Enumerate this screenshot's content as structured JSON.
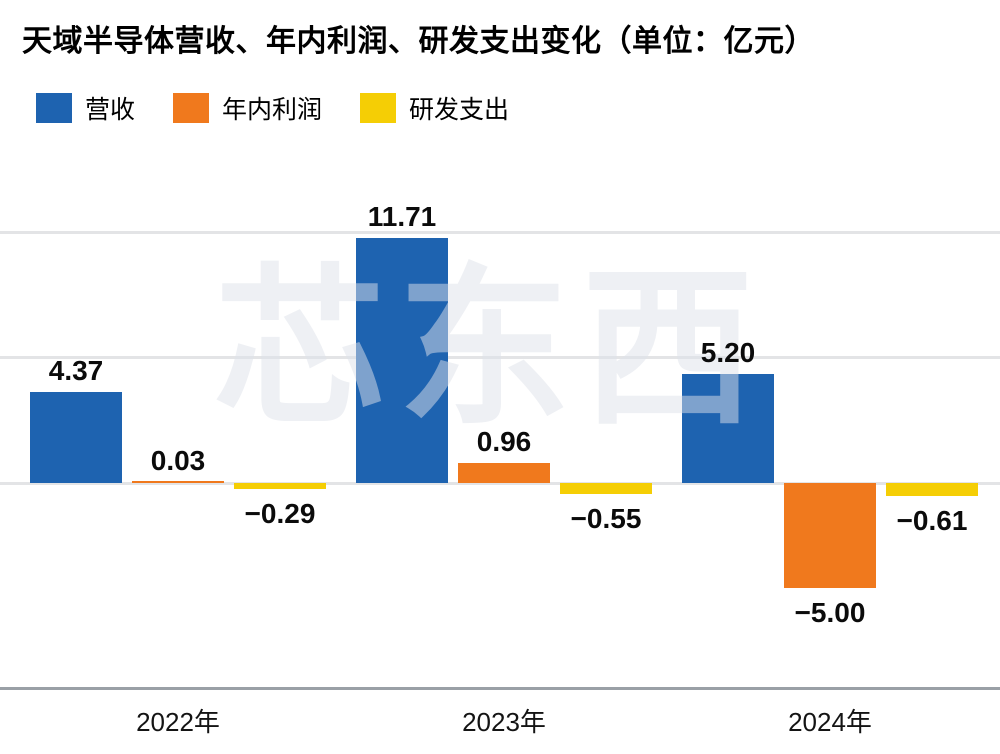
{
  "title": "天域半导体营收、年内利润、研发支出变化（单位：亿元）",
  "watermark": "芯东西",
  "chart_data": {
    "type": "bar",
    "title": "天域半导体营收、年内利润、研发支出变化（单位：亿元）",
    "unit": "亿元",
    "categories": [
      "2022年",
      "2023年",
      "2024年"
    ],
    "series": [
      {
        "name": "营收",
        "color": "#1e63b0",
        "values": [
          4.37,
          11.71,
          5.2
        ],
        "labels": [
          "4.37",
          "11.71",
          "5.20"
        ]
      },
      {
        "name": "年内利润",
        "color": "#f0791d",
        "values": [
          0.03,
          0.96,
          -5.0
        ],
        "labels": [
          "0.03",
          "0.96",
          "−5.00"
        ]
      },
      {
        "name": "研发支出",
        "color": "#f5ce05",
        "values": [
          -0.29,
          -0.55,
          -0.61
        ],
        "labels": [
          "−0.29",
          "−0.55",
          "−0.61"
        ]
      }
    ],
    "ylim": [
      -9.8,
      12.2
    ],
    "gridline_values": [
      12,
      6,
      0
    ],
    "grid": true,
    "legend_position": "top-left",
    "xlabel": "",
    "ylabel": ""
  }
}
